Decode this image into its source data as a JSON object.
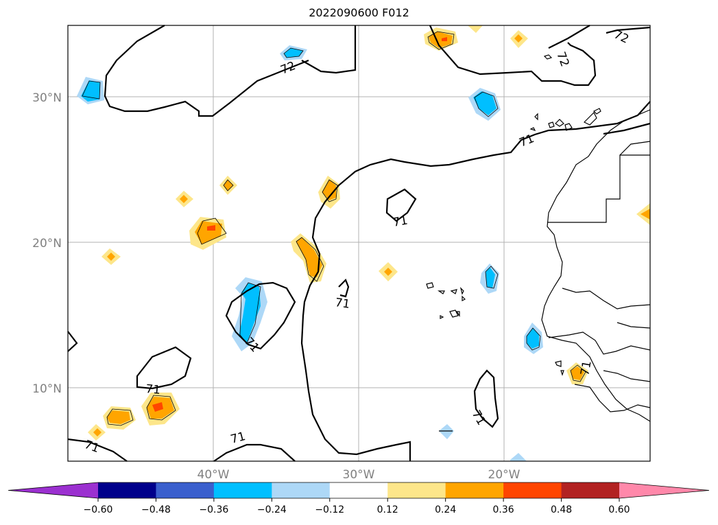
{
  "title": "2022090600 F012",
  "map": {
    "lat_labels": [
      "30°N",
      "20°N",
      "10°N"
    ],
    "lon_labels": [
      "40°W",
      "30°W",
      "20°W"
    ],
    "contour_labels": [
      "72",
      "72",
      "72",
      "71",
      "71",
      "71",
      "71",
      "71",
      "71",
      "71",
      "71",
      "71"
    ]
  },
  "colorbar": {
    "ticks": [
      "−0.60",
      "−0.48",
      "−0.36",
      "−0.24",
      "−0.12",
      "0.12",
      "0.24",
      "0.36",
      "0.48",
      "0.60"
    ],
    "colors": [
      "#9b30d0",
      "#00008b",
      "#3a5fcd",
      "#00bfff",
      "#add8f7",
      "#ffffff",
      "#fde68a",
      "#ffa500",
      "#ff4500",
      "#b22222",
      "#ff88aa"
    ]
  },
  "colors": {
    "grid": "#b0b0b0",
    "contour": "#000000",
    "land": "#000000"
  }
}
